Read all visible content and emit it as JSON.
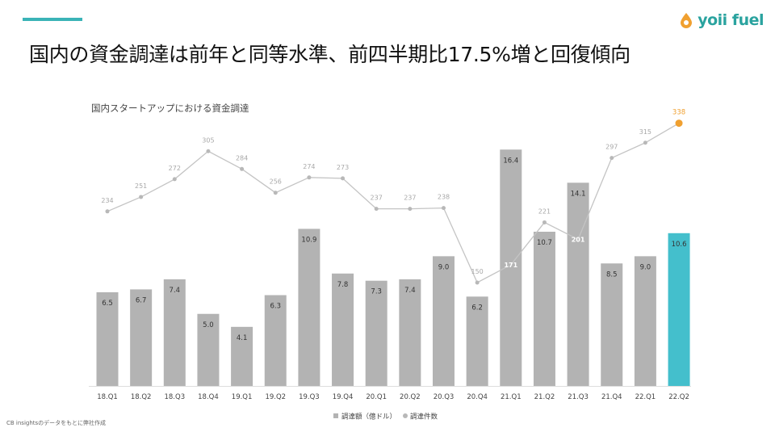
{
  "header": {
    "title": "国内の資金調達は前年と同等水準、前四半期比17.5%増と回復傾向",
    "logo_text": "yoii fuel",
    "accent_color": "#3ab3b7",
    "logo_color": "#2aa39f"
  },
  "source_note": "CB insightsのデータをもとに弊社作成",
  "chart_data": {
    "type": "bar",
    "title": "国内スタートアップにおける資金調達",
    "categories": [
      "18.Q1",
      "18.Q2",
      "18.Q3",
      "18.Q4",
      "19.Q1",
      "19.Q2",
      "19.Q3",
      "19.Q4",
      "20.Q1",
      "20.Q2",
      "20.Q3",
      "20.Q4",
      "21.Q1",
      "21.Q2",
      "21.Q3",
      "21.Q4",
      "22.Q1",
      "22.Q2"
    ],
    "series": [
      {
        "name": "調達額（億ドル）",
        "type": "bar",
        "values": [
          6.5,
          6.7,
          7.4,
          5.0,
          4.1,
          6.3,
          10.9,
          7.8,
          7.3,
          7.4,
          9.0,
          6.2,
          16.4,
          10.7,
          14.1,
          8.5,
          9.0,
          10.6
        ],
        "labels": [
          "6.5",
          "6.7",
          "7.4",
          "5.0",
          "4.1",
          "6.3",
          "10.9",
          "7.8",
          "7.3",
          "7.4",
          "9.0",
          "6.2",
          "16.4",
          "10.7",
          "14.1",
          "8.5",
          "9.0",
          "10.6"
        ],
        "color": "#b3b3b3",
        "highlight_color": "#44bfcc",
        "highlight_index": 17
      },
      {
        "name": "調達件数",
        "type": "line",
        "values": [
          234,
          251,
          272,
          305,
          284,
          256,
          274,
          273,
          237,
          237,
          238,
          150,
          171,
          221,
          201,
          297,
          315,
          338
        ],
        "labels": [
          "234",
          "251",
          "272",
          "305",
          "284",
          "256",
          "274",
          "273",
          "237",
          "237",
          "238",
          "150",
          "171",
          "221",
          "201",
          "297",
          "315",
          "338"
        ],
        "color": "#b3b3b3",
        "highlight_color": "#f0a030",
        "highlight_index": 17
      }
    ],
    "grid": false,
    "legend_position": "bottom"
  }
}
